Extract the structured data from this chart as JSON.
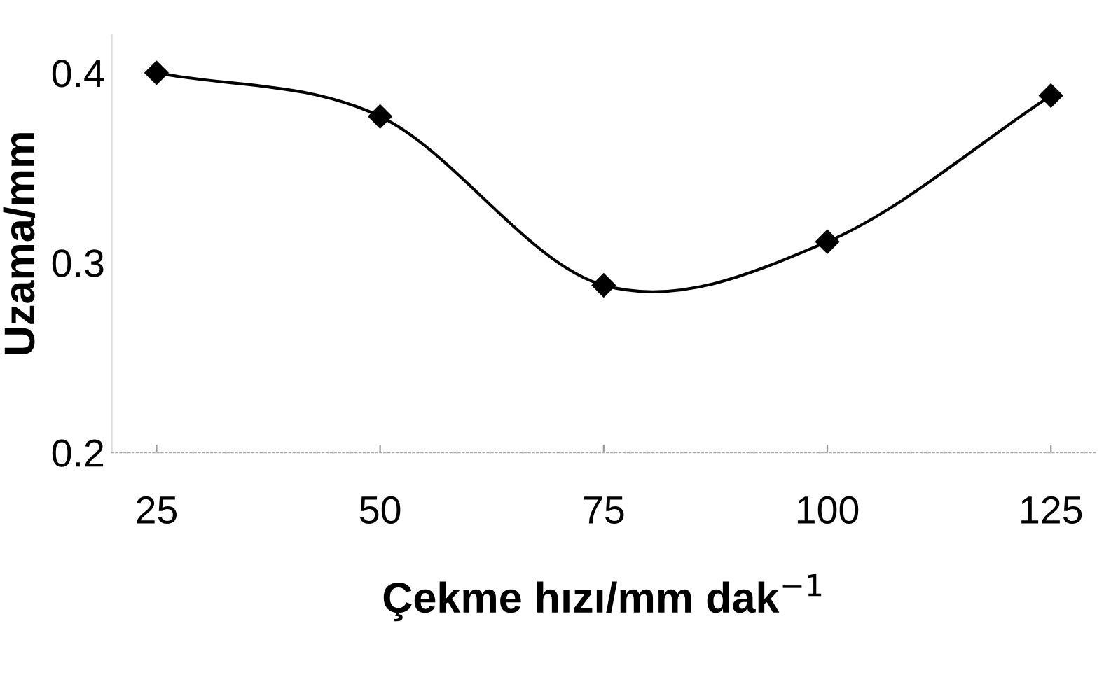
{
  "chart_data": {
    "type": "line",
    "xlabel": "Çekme hızı/mm dak$^{−1}$",
    "ylabel": "Uzama/mm",
    "x": [
      25,
      50,
      75,
      100,
      125
    ],
    "series": [
      {
        "color": "#000000",
        "values": [
          0.4,
          0.377,
          0.288,
          0.311,
          0.388
        ]
      }
    ],
    "xlim": [
      20,
      130
    ],
    "ylim": [
      0.2,
      0.42
    ],
    "xticks": [
      25,
      50,
      75,
      100,
      125
    ],
    "yticks": [
      0.2,
      0.3,
      0.4
    ],
    "marker": "diamond",
    "line_style": "solid",
    "grid": false,
    "legend": false
  }
}
